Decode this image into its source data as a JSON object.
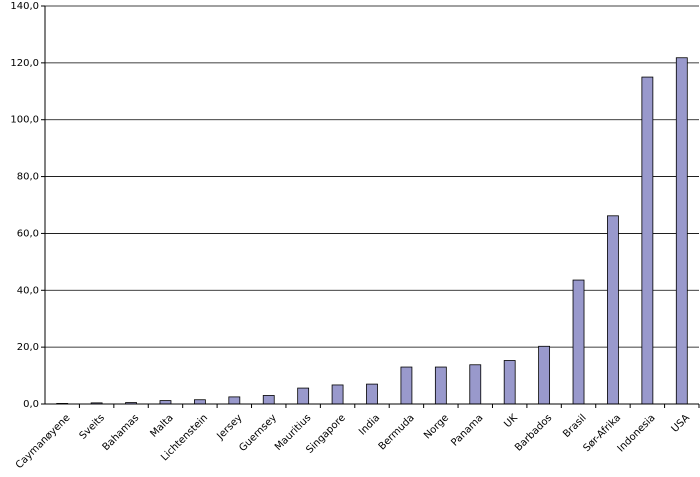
{
  "chart_data": {
    "type": "bar",
    "categories": [
      "Caymanøyene",
      "Sveits",
      "Bahamas",
      "Malta",
      "Lichtenstein",
      "Jersey",
      "Guernsey",
      "Mauritius",
      "Singapore",
      "India",
      "Bermuda",
      "Norge",
      "Panama",
      "UK",
      "Barbados",
      "Brasil",
      "Sør-Afrika",
      "Indonesia",
      "USA"
    ],
    "values": [
      0.2,
      0.4,
      0.5,
      1.2,
      1.5,
      2.5,
      3,
      5.6,
      6.7,
      7,
      13,
      13,
      13.8,
      15.3,
      20.3,
      43.6,
      66.2,
      115,
      121.8
    ],
    "color": "#9999cc",
    "ylim": [
      0,
      140
    ],
    "yticks": [
      {
        "value": 0,
        "label": "0,0"
      },
      {
        "value": 20,
        "label": "20,0"
      },
      {
        "value": 40,
        "label": "40,0"
      },
      {
        "value": 60,
        "label": "60,0"
      },
      {
        "value": 80,
        "label": "80,0"
      },
      {
        "value": 100,
        "label": "100,0"
      },
      {
        "value": 120,
        "label": "120,0"
      },
      {
        "value": 140,
        "label": "140,0"
      }
    ],
    "grid": true
  }
}
